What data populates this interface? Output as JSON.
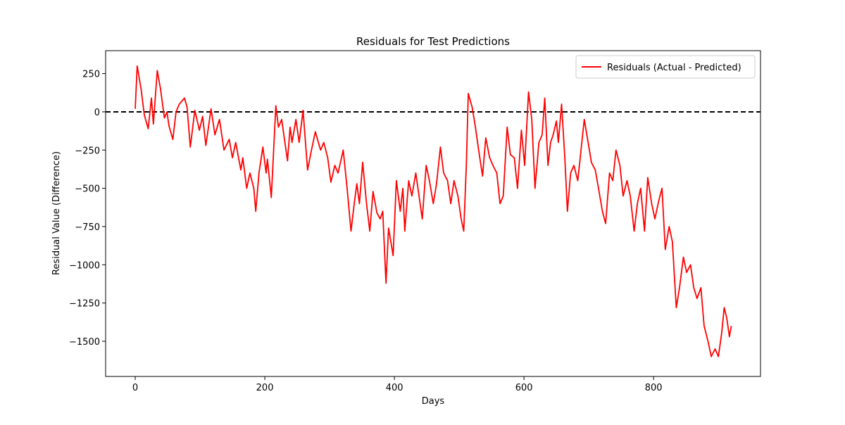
{
  "chart_data": {
    "type": "line",
    "title": "Residuals for Test Predictions",
    "x_label": "Days",
    "y_label": "Residual Value (Difference)",
    "x": [
      0,
      3,
      9,
      14,
      20,
      25,
      28,
      34,
      39,
      45,
      49,
      52,
      58,
      63,
      68,
      76,
      80,
      85,
      92,
      99,
      104,
      109,
      117,
      123,
      130,
      137,
      145,
      150,
      155,
      163,
      166,
      172,
      177,
      183,
      186,
      191,
      197,
      202,
      204,
      210,
      217,
      221,
      226,
      235,
      239,
      242,
      248,
      253,
      259,
      266,
      272,
      278,
      286,
      291,
      297,
      302,
      308,
      313,
      321,
      327,
      333,
      338,
      342,
      346,
      351,
      357,
      362,
      367,
      373,
      378,
      382,
      387,
      391,
      398,
      403,
      409,
      413,
      416,
      422,
      427,
      433,
      438,
      443,
      449,
      454,
      460,
      465,
      471,
      476,
      482,
      487,
      492,
      498,
      503,
      507,
      511,
      514,
      520,
      525,
      530,
      536,
      541,
      547,
      552,
      558,
      563,
      568,
      574,
      579,
      585,
      590,
      596,
      601,
      607,
      612,
      617,
      623,
      628,
      632,
      637,
      641,
      645,
      650,
      653,
      658,
      663,
      667,
      672,
      677,
      683,
      688,
      693,
      699,
      704,
      710,
      715,
      721,
      726,
      732,
      737,
      742,
      748,
      753,
      759,
      764,
      770,
      775,
      780,
      786,
      791,
      797,
      802,
      808,
      813,
      818,
      824,
      829,
      835,
      840,
      846,
      851,
      857,
      862,
      867,
      873,
      878,
      884,
      889,
      895,
      900,
      905,
      909,
      913,
      917,
      920
    ],
    "series": [
      {
        "name": "Residuals (Actual - Predicted)",
        "color": "#ff0000",
        "values": [
          20,
          300,
          150,
          -20,
          -110,
          90,
          -80,
          270,
          150,
          -40,
          0,
          -90,
          -180,
          0,
          50,
          90,
          30,
          -230,
          10,
          -120,
          -30,
          -220,
          20,
          -150,
          -50,
          -250,
          -180,
          -300,
          -200,
          -380,
          -300,
          -500,
          -400,
          -500,
          -650,
          -400,
          -230,
          -400,
          -310,
          -560,
          40,
          -100,
          -50,
          -320,
          -100,
          -200,
          -50,
          -200,
          10,
          -380,
          -250,
          -130,
          -250,
          -200,
          -300,
          -460,
          -350,
          -400,
          -250,
          -500,
          -780,
          -600,
          -470,
          -600,
          -330,
          -600,
          -780,
          -520,
          -660,
          -700,
          -650,
          -1120,
          -760,
          -940,
          -450,
          -650,
          -500,
          -780,
          -450,
          -550,
          -400,
          -550,
          -700,
          -350,
          -450,
          -600,
          -470,
          -230,
          -400,
          -450,
          -600,
          -450,
          -550,
          -700,
          -780,
          -350,
          120,
          30,
          -100,
          -250,
          -420,
          -170,
          -300,
          -350,
          -400,
          -600,
          -550,
          -100,
          -280,
          -300,
          -500,
          -120,
          -350,
          130,
          -50,
          -500,
          -200,
          -150,
          90,
          -350,
          -200,
          -150,
          -60,
          -200,
          50,
          -300,
          -650,
          -400,
          -350,
          -450,
          -250,
          -50,
          -200,
          -330,
          -380,
          -500,
          -650,
          -730,
          -400,
          -450,
          -250,
          -350,
          -550,
          -450,
          -550,
          -780,
          -600,
          -500,
          -780,
          -430,
          -600,
          -700,
          -580,
          -500,
          -900,
          -750,
          -850,
          -1280,
          -1150,
          -950,
          -1050,
          -1000,
          -1150,
          -1220,
          -1150,
          -1400,
          -1500,
          -1600,
          -1550,
          -1600,
          -1450,
          -1280,
          -1350,
          -1470,
          -1400
        ]
      }
    ],
    "reference_line": {
      "y": 0,
      "color": "#000000",
      "style": "dashed"
    },
    "xlim": [
      -45.7,
      965
    ],
    "ylim": [
      -1730,
      400
    ],
    "xticks": [
      0,
      200,
      400,
      600,
      800
    ],
    "yticks": [
      {
        "value": -1500,
        "label": "−1500"
      },
      {
        "value": -1250,
        "label": "−1250"
      },
      {
        "value": -1000,
        "label": "−1000"
      },
      {
        "value": -750,
        "label": "−750"
      },
      {
        "value": -500,
        "label": "−500"
      },
      {
        "value": -250,
        "label": "−250"
      },
      0,
      250
    ],
    "legend": "upper right",
    "grid": false
  }
}
